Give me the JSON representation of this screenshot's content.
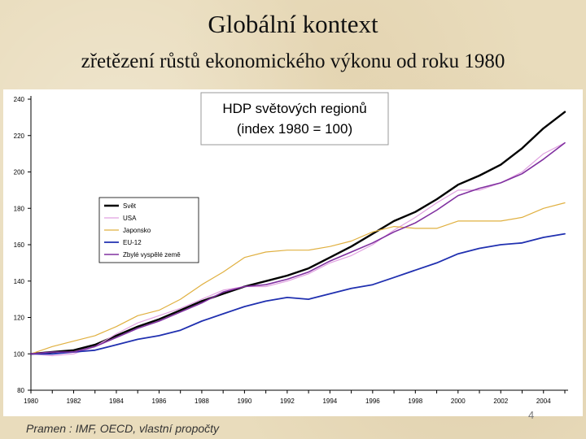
{
  "slide": {
    "title": "Globální kontext",
    "subtitle": "zřetězení růstů ekonomického výkonu od roku 1980",
    "source": "Pramen : IMF, OECD, vlastní propočty",
    "page_number": "4"
  },
  "chart_data": {
    "type": "line",
    "title_line1": "HDP světových regionů",
    "title_line2": "(index 1980 = 100)",
    "x": [
      1980,
      1981,
      1982,
      1983,
      1984,
      1985,
      1986,
      1987,
      1988,
      1989,
      1990,
      1991,
      1992,
      1993,
      1994,
      1995,
      1996,
      1997,
      1998,
      1999,
      2000,
      2001,
      2002,
      2003,
      2004,
      2005
    ],
    "xticks": [
      1980,
      1982,
      1984,
      1986,
      1988,
      1990,
      1992,
      1994,
      1996,
      1998,
      2000,
      2002,
      2004
    ],
    "yticks": [
      80,
      100,
      120,
      140,
      160,
      180,
      200,
      220,
      240
    ],
    "xlim": [
      1980,
      2005
    ],
    "ylim": [
      80,
      240
    ],
    "grid": false,
    "legend_position": "left-middle",
    "series": [
      {
        "name": "Svět",
        "color": "#000000",
        "width": 2.4,
        "values": [
          100,
          101,
          102,
          105,
          110,
          115,
          119,
          124,
          129,
          133,
          137,
          140,
          143,
          147,
          153,
          159,
          166,
          173,
          178,
          185,
          193,
          198,
          204,
          213,
          224,
          233
        ]
      },
      {
        "name": "USA",
        "color": "#e0a0e0",
        "width": 1.2,
        "values": [
          100,
          99,
          100,
          104,
          111,
          117,
          121,
          125,
          130,
          135,
          137,
          137,
          140,
          144,
          150,
          154,
          160,
          168,
          175,
          183,
          190,
          190,
          194,
          200,
          210,
          216
        ]
      },
      {
        "name": "Japonsko",
        "color": "#e0b040",
        "width": 1.2,
        "values": [
          100,
          104,
          107,
          110,
          115,
          121,
          124,
          130,
          138,
          145,
          153,
          156,
          157,
          157,
          159,
          162,
          167,
          170,
          169,
          169,
          173,
          173,
          173,
          175,
          180,
          183
        ]
      },
      {
        "name": "EU-12",
        "color": "#2030b0",
        "width": 1.8,
        "values": [
          100,
          100,
          101,
          102,
          105,
          108,
          110,
          113,
          118,
          122,
          126,
          129,
          131,
          130,
          133,
          136,
          138,
          142,
          146,
          150,
          155,
          158,
          160,
          161,
          164,
          166
        ]
      },
      {
        "name": "Zbylé vyspělé země",
        "color": "#8030a0",
        "width": 1.6,
        "values": [
          100,
          101,
          101,
          104,
          109,
          114,
          118,
          123,
          128,
          134,
          137,
          138,
          141,
          145,
          151,
          156,
          161,
          167,
          172,
          179,
          187,
          191,
          194,
          199,
          207,
          216
        ]
      }
    ]
  }
}
